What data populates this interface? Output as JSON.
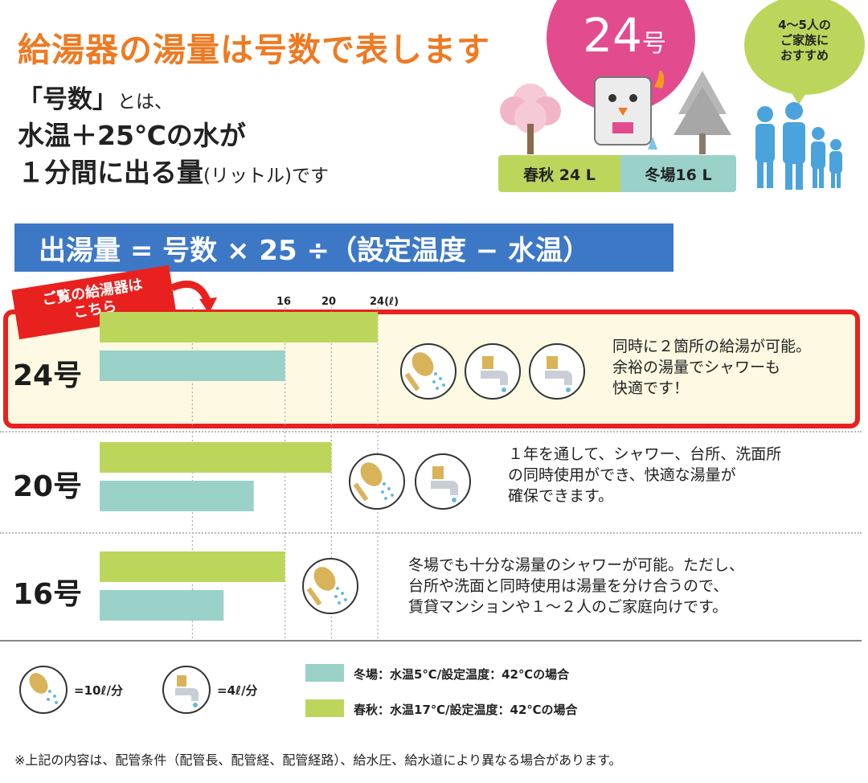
{
  "header": {
    "title": "給湯器の湯量は号数で表します",
    "definition_line1_bold": "「号数」",
    "definition_line1_small": "とは、",
    "definition_line2": "水温＋25℃の水が",
    "definition_line3_bold": "１分間に出る量",
    "definition_line3_small": "(リットル)です"
  },
  "badge": {
    "number": "24",
    "unit": "号"
  },
  "family_bubble": {
    "line1": "4～5人の",
    "line2": "ご家族に",
    "line3": "おすすめ"
  },
  "season_flow": {
    "spring_autumn": "春秋 24 L",
    "winter": "冬場16 L"
  },
  "formula": "出湯量 = 号数 × 25 ÷（設定温度 − 水温）",
  "ribbon": {
    "line1": "ご覧の給湯器は",
    "line2": "こちら"
  },
  "axis": {
    "ticks": [
      "16",
      "20",
      "24(ℓ)"
    ]
  },
  "rows": [
    {
      "label": "24号",
      "desc1": "同時に２箇所の給湯が可能。",
      "desc2": "余裕の湯量でシャワーも",
      "desc3": "快適です！"
    },
    {
      "label": "20号",
      "desc1": "１年を通して、シャワー、台所、洗面所",
      "desc2": "の同時使用ができ、快適な湯量が",
      "desc3": "確保できます。"
    },
    {
      "label": "16号",
      "desc1": "冬場でも十分な湯量のシャワーが可能。ただし、",
      "desc2": "台所や洗面と同時使用は湯量を分け合うので、",
      "desc3": "賃貸マンションや１～２人のご家庭向けです。"
    }
  ],
  "legend": {
    "shower": "=10ℓ/分",
    "faucet": "=4ℓ/分",
    "winter": "冬場：水温5℃/設定温度：42℃の場合",
    "spring": "春秋：水温17℃/設定温度：42℃の場合"
  },
  "footnote": "※上記の内容は、配管条件（配管長、配管経、配管経路）、給水圧、給水道により異なる場合があります。",
  "colors": {
    "spring": "#bcd65c",
    "winter": "#9ad1c8",
    "accent": "#e8211f",
    "title": "#ee7a22",
    "formula": "#3d78c6"
  },
  "chart_data": {
    "type": "bar",
    "categories": [
      "24号",
      "20号",
      "16号"
    ],
    "series": [
      {
        "name": "春秋",
        "values": [
          24,
          20,
          16
        ]
      },
      {
        "name": "冬場",
        "values": [
          16,
          13.3,
          10.7
        ]
      }
    ],
    "xlim": [
      0,
      24
    ],
    "ticks": [
      16,
      20,
      24
    ]
  }
}
